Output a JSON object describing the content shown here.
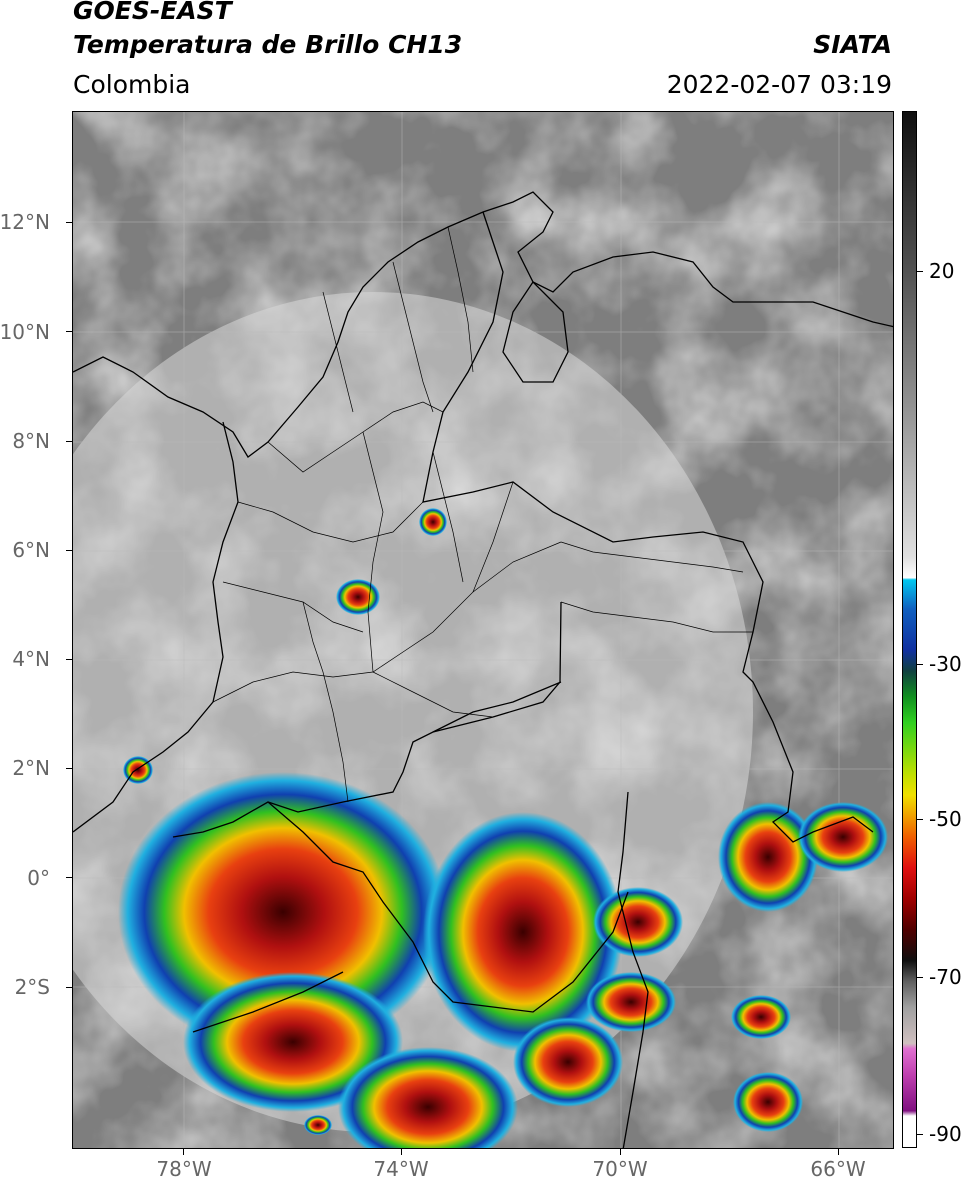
{
  "header": {
    "satellite": "GOES-EAST",
    "product": "Temperatura de Brillo CH13",
    "region": "Colombia",
    "source": "SIATA",
    "datetime": "2022-02-07 03:19"
  },
  "axes": {
    "lat_labels": [
      "12°N",
      "10°N",
      "8°N",
      "6°N",
      "4°N",
      "2°N",
      "0°",
      "2°S"
    ],
    "lon_labels": [
      "78°W",
      "74°W",
      "70°W",
      "66°W"
    ]
  },
  "colorbar": {
    "labels": [
      "20",
      "-30",
      "-50",
      "-70",
      "-90"
    ],
    "colors": {
      "cyan": "#00c8f0",
      "blue": "#1030a0",
      "green": "#20c020",
      "yellow": "#f0e000",
      "orange": "#f08000",
      "red": "#d01010",
      "darkred": "#600000",
      "magenta": "#d040c0"
    }
  }
}
